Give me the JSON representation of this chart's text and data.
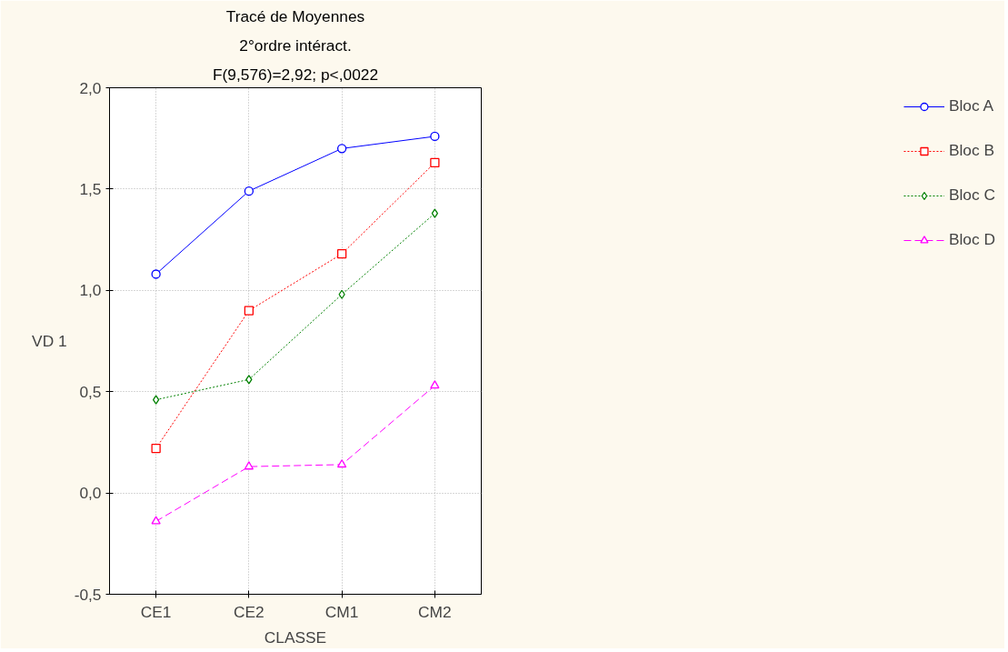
{
  "chart_data": {
    "type": "line",
    "title": "Tracé de Moyennes",
    "subtitle": "2°ordre intéract.",
    "annotations": [
      "F(9,576)=2,92; p<,0022"
    ],
    "xlabel": "CLASSE",
    "ylabel": "VD 1",
    "categories": [
      "CE1",
      "CE2",
      "CM1",
      "CM2"
    ],
    "series": [
      {
        "name": "Bloc A",
        "color": "#0000ff",
        "marker": "circle",
        "line_style": "solid",
        "values": [
          1.08,
          1.49,
          1.7,
          1.76
        ]
      },
      {
        "name": "Bloc B",
        "color": "#ff0000",
        "marker": "square",
        "line_style": "dotted",
        "values": [
          0.22,
          0.9,
          1.18,
          1.63
        ]
      },
      {
        "name": "Bloc C",
        "color": "#008000",
        "marker": "diamond",
        "line_style": "dotted",
        "values": [
          0.46,
          0.56,
          0.98,
          1.38
        ]
      },
      {
        "name": "Bloc D",
        "color": "#ff00ff",
        "marker": "triangle",
        "line_style": "dashed",
        "values": [
          -0.14,
          0.13,
          0.14,
          0.53
        ]
      }
    ],
    "ylim": [
      -0.5,
      2.0
    ],
    "yticks": [
      {
        "value": -0.5,
        "label": "-0,5"
      },
      {
        "value": 0.0,
        "label": "0,0"
      },
      {
        "value": 0.5,
        "label": "0,5"
      },
      {
        "value": 1.0,
        "label": "1,0"
      },
      {
        "value": 1.5,
        "label": "1,5"
      },
      {
        "value": 2.0,
        "label": "2,0"
      }
    ],
    "grid": true,
    "legend": "right"
  }
}
